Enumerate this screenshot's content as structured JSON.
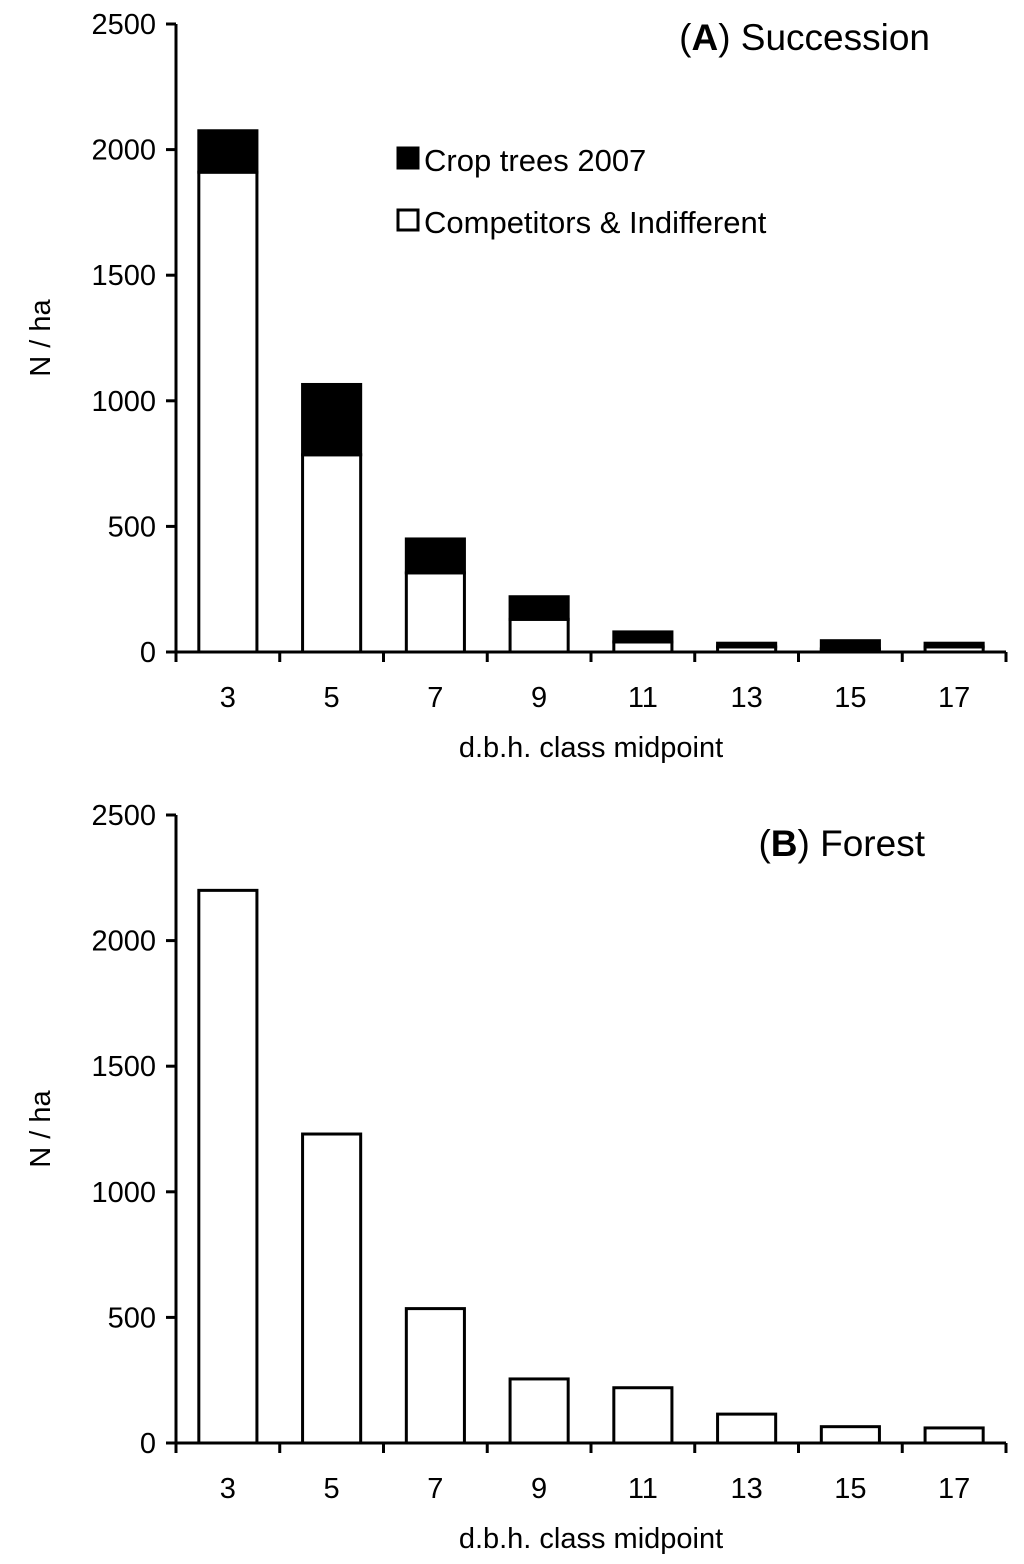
{
  "chart_data": [
    {
      "type": "bar",
      "stacked": true,
      "panel_letter": "A",
      "title": "Succession",
      "xlabel": "d.b.h. class midpoint",
      "ylabel": "N / ha",
      "ylim": [
        0,
        2500
      ],
      "yticks": [
        0,
        500,
        1000,
        1500,
        2000,
        2500
      ],
      "categories": [
        "3",
        "5",
        "7",
        "9",
        "11",
        "13",
        "15",
        "17"
      ],
      "legend": {
        "placement": "top-right"
      },
      "series": [
        {
          "name": "Competitors & Indifferent",
          "color": "#ffffff",
          "values": [
            1910,
            785,
            315,
            130,
            40,
            20,
            12,
            20
          ]
        },
        {
          "name": "Crop trees 2007",
          "color": "#000000",
          "values": [
            165,
            280,
            135,
            90,
            40,
            15,
            33,
            15
          ]
        }
      ]
    },
    {
      "type": "bar",
      "stacked": false,
      "panel_letter": "B",
      "title": "Forest",
      "xlabel": "d.b.h. class midpoint",
      "ylabel": "N / ha",
      "ylim": [
        0,
        2500
      ],
      "yticks": [
        0,
        500,
        1000,
        1500,
        2000,
        2500
      ],
      "categories": [
        "3",
        "5",
        "7",
        "9",
        "11",
        "13",
        "15",
        "17"
      ],
      "series": [
        {
          "color": "#ffffff",
          "values": [
            2200,
            1230,
            535,
            255,
            220,
            115,
            65,
            60
          ]
        }
      ]
    }
  ]
}
